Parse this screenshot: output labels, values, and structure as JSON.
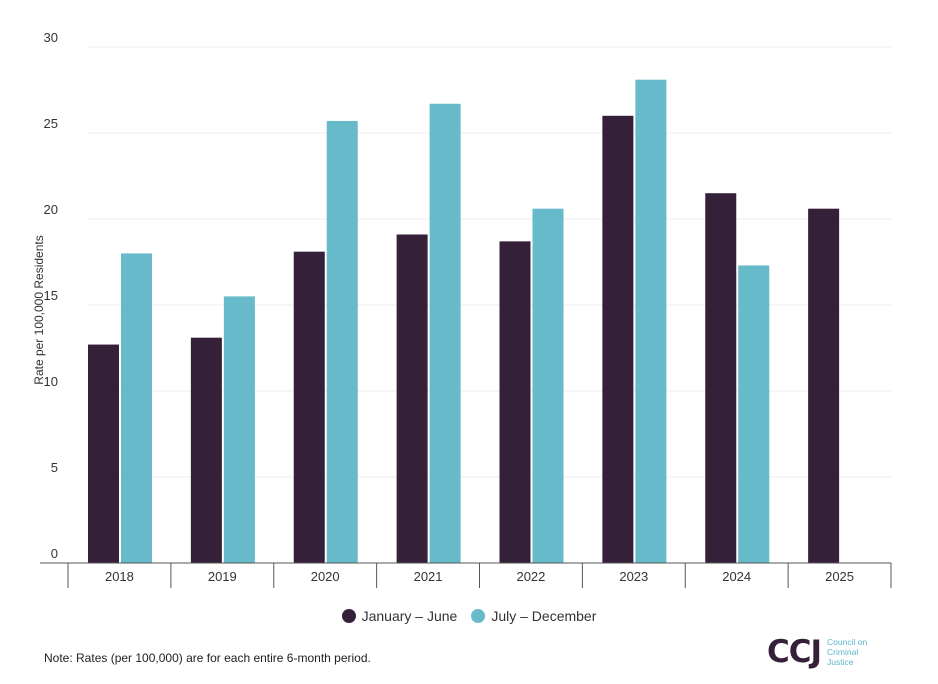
{
  "chart_data": {
    "type": "bar",
    "ylabel": "Rate per 100,000 Residents",
    "xlabel": "",
    "ylim": [
      0,
      30
    ],
    "yticks": [
      0,
      5,
      10,
      15,
      20,
      25,
      30
    ],
    "grid": true,
    "legend_position": "bottom",
    "categories": [
      "2018",
      "2019",
      "2020",
      "2021",
      "2022",
      "2023",
      "2024",
      "2025"
    ],
    "series": [
      {
        "name": "January – June",
        "color": "#35203a",
        "values": [
          12.7,
          13.1,
          18.1,
          19.1,
          18.7,
          26.0,
          21.5,
          20.6
        ]
      },
      {
        "name": "July – December",
        "color": "#66bac9",
        "values": [
          18.0,
          15.5,
          25.7,
          26.7,
          20.6,
          28.1,
          17.3,
          null
        ]
      }
    ]
  },
  "note": "Note: Rates (per 100,000) are for each entire 6-month period.",
  "logo": {
    "mark": "CCJ",
    "text": [
      "Council on",
      "Criminal",
      "Justice"
    ]
  }
}
